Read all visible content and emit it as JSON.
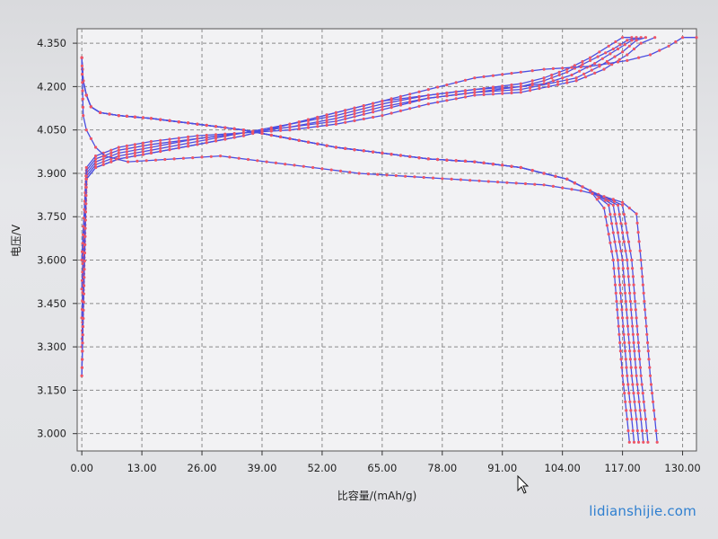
{
  "watermark": "lidianshijie.com",
  "chart_data": {
    "type": "line",
    "title": "",
    "xlabel": "比容量/(mAh/g)",
    "ylabel": "电压/V",
    "xlim": [
      -1,
      133
    ],
    "ylim": [
      2.94,
      4.4
    ],
    "x_ticks": [
      "0.00",
      "13.00",
      "26.00",
      "39.00",
      "52.00",
      "65.00",
      "78.00",
      "91.00",
      "104.00",
      "117.00",
      "130.00"
    ],
    "y_ticks": [
      "4.350",
      "4.200",
      "4.050",
      "3.900",
      "3.750",
      "3.600",
      "3.450",
      "3.300",
      "3.150",
      "3.000"
    ],
    "grid": true,
    "colors": {
      "line": "#4a4ee0",
      "marker": "#ee5566",
      "grid": "#8a8a8a",
      "axis": "#333333"
    },
    "series": [
      {
        "x": [
          0,
          1,
          3,
          8,
          15,
          25,
          35,
          45,
          55,
          65,
          75,
          85,
          95,
          100,
          105,
          110,
          114,
          117,
          119
        ],
        "y": [
          3.2,
          3.88,
          3.92,
          3.95,
          3.97,
          4.0,
          4.03,
          4.07,
          4.11,
          4.15,
          4.17,
          4.19,
          4.21,
          4.23,
          4.26,
          4.3,
          4.34,
          4.37,
          4.37
        ]
      },
      {
        "x": [
          0,
          1,
          3,
          8,
          15,
          25,
          35,
          45,
          55,
          65,
          75,
          85,
          95,
          100,
          105,
          110,
          115,
          118,
          120
        ],
        "y": [
          3.3,
          3.89,
          3.93,
          3.96,
          3.98,
          4.01,
          4.04,
          4.07,
          4.1,
          4.14,
          4.17,
          4.19,
          4.2,
          4.22,
          4.25,
          4.29,
          4.33,
          4.36,
          4.37
        ]
      },
      {
        "x": [
          0,
          1,
          3,
          8,
          15,
          25,
          35,
          45,
          55,
          65,
          75,
          85,
          95,
          100,
          106,
          111,
          116,
          119,
          121
        ],
        "y": [
          3.4,
          3.9,
          3.94,
          3.97,
          3.99,
          4.02,
          4.04,
          4.06,
          4.09,
          4.13,
          4.16,
          4.18,
          4.2,
          4.21,
          4.24,
          4.28,
          4.33,
          4.36,
          4.37
        ]
      },
      {
        "x": [
          0,
          1,
          3,
          8,
          15,
          25,
          35,
          45,
          55,
          65,
          75,
          85,
          95,
          101,
          107,
          112,
          117,
          120,
          122
        ],
        "y": [
          3.5,
          3.91,
          3.95,
          3.98,
          4.0,
          4.02,
          4.04,
          4.06,
          4.08,
          4.12,
          4.16,
          4.18,
          4.19,
          4.21,
          4.23,
          4.27,
          4.32,
          4.36,
          4.37
        ]
      },
      {
        "x": [
          0,
          1,
          3,
          8,
          15,
          25,
          35,
          45,
          55,
          65,
          75,
          85,
          95,
          101,
          107,
          113,
          118,
          121,
          124
        ],
        "y": [
          3.6,
          3.92,
          3.96,
          3.99,
          4.01,
          4.03,
          4.04,
          4.05,
          4.07,
          4.1,
          4.14,
          4.17,
          4.18,
          4.2,
          4.22,
          4.26,
          4.31,
          4.35,
          4.37
        ]
      },
      {
        "x": [
          0,
          1,
          3,
          8,
          15,
          25,
          35,
          45,
          55,
          65,
          75,
          85,
          95,
          100,
          110,
          118,
          123,
          127,
          130,
          133
        ],
        "y": [
          3.2,
          3.88,
          3.92,
          3.95,
          3.97,
          4.0,
          4.03,
          4.07,
          4.11,
          4.15,
          4.19,
          4.23,
          4.25,
          4.26,
          4.27,
          4.29,
          4.31,
          4.34,
          4.37,
          4.37
        ]
      },
      {
        "x": [
          0,
          0.3,
          1,
          2,
          4,
          8,
          15,
          25,
          35,
          45,
          55,
          65,
          75,
          85,
          95,
          100,
          105,
          110,
          113,
          115,
          116,
          117,
          118,
          118.5
        ],
        "y": [
          4.3,
          4.22,
          4.17,
          4.13,
          4.11,
          4.1,
          4.09,
          4.07,
          4.05,
          4.02,
          3.99,
          3.97,
          3.95,
          3.94,
          3.92,
          3.9,
          3.88,
          3.84,
          3.78,
          3.6,
          3.4,
          3.2,
          3.05,
          2.97
        ]
      },
      {
        "x": [
          0,
          0.3,
          1,
          2,
          4,
          8,
          15,
          25,
          35,
          45,
          55,
          65,
          75,
          85,
          95,
          100,
          105,
          110,
          114,
          116,
          117,
          118,
          119,
          119.5
        ],
        "y": [
          4.3,
          4.22,
          4.17,
          4.13,
          4.11,
          4.1,
          4.09,
          4.07,
          4.05,
          4.02,
          3.99,
          3.97,
          3.95,
          3.94,
          3.92,
          3.9,
          3.88,
          3.84,
          3.79,
          3.6,
          3.4,
          3.2,
          3.05,
          2.97
        ]
      },
      {
        "x": [
          0,
          0.3,
          1,
          2,
          4,
          8,
          15,
          25,
          35,
          45,
          55,
          65,
          75,
          85,
          95,
          100,
          105,
          110,
          115,
          117,
          118,
          119,
          120,
          120.5
        ],
        "y": [
          4.3,
          4.22,
          4.17,
          4.13,
          4.11,
          4.1,
          4.09,
          4.07,
          4.05,
          4.02,
          3.99,
          3.97,
          3.95,
          3.94,
          3.92,
          3.9,
          3.88,
          3.84,
          3.79,
          3.6,
          3.4,
          3.2,
          3.05,
          2.97
        ]
      },
      {
        "x": [
          0,
          0.3,
          1,
          2,
          4,
          8,
          15,
          25,
          35,
          45,
          55,
          65,
          75,
          85,
          95,
          100,
          105,
          110,
          116,
          118,
          119,
          120,
          121,
          121.5
        ],
        "y": [
          4.3,
          4.22,
          4.17,
          4.13,
          4.11,
          4.1,
          4.09,
          4.07,
          4.05,
          4.02,
          3.99,
          3.97,
          3.95,
          3.94,
          3.92,
          3.9,
          3.88,
          3.84,
          3.79,
          3.6,
          3.4,
          3.2,
          3.05,
          2.97
        ]
      },
      {
        "x": [
          0,
          0.3,
          1,
          2,
          4,
          8,
          15,
          25,
          35,
          45,
          55,
          65,
          75,
          85,
          95,
          100,
          105,
          110,
          117,
          119,
          120,
          121,
          122,
          122.5
        ],
        "y": [
          4.3,
          4.22,
          4.17,
          4.13,
          4.11,
          4.1,
          4.09,
          4.07,
          4.05,
          4.02,
          3.99,
          3.97,
          3.95,
          3.94,
          3.92,
          3.9,
          3.88,
          3.84,
          3.79,
          3.6,
          3.4,
          3.2,
          3.05,
          2.97
        ]
      },
      {
        "x": [
          0,
          0.3,
          1,
          2,
          3,
          5,
          10,
          20,
          30,
          40,
          50,
          60,
          70,
          80,
          90,
          100,
          108,
          113,
          117,
          120,
          121,
          122,
          123,
          124,
          124.5
        ],
        "y": [
          4.3,
          4.1,
          4.05,
          4.02,
          3.99,
          3.96,
          3.94,
          3.95,
          3.96,
          3.94,
          3.92,
          3.9,
          3.89,
          3.88,
          3.87,
          3.86,
          3.84,
          3.82,
          3.8,
          3.76,
          3.6,
          3.4,
          3.2,
          3.05,
          2.97
        ]
      }
    ]
  }
}
